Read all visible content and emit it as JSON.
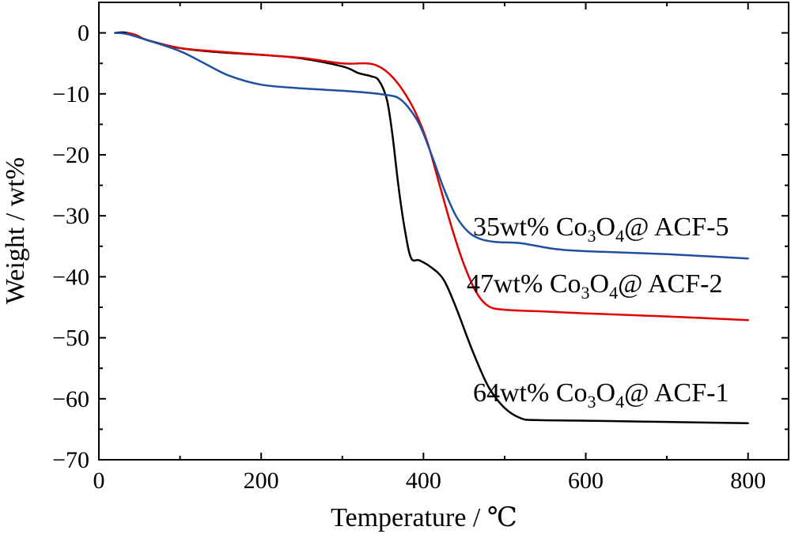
{
  "chart_data": {
    "type": "line",
    "xlabel": "Temperature / ℃",
    "ylabel": "Weight / wt%",
    "xlim": [
      0,
      850
    ],
    "ylim": [
      -70,
      5
    ],
    "xticks": [
      0,
      200,
      400,
      600,
      800
    ],
    "yticks": [
      0,
      -10,
      -20,
      -30,
      -40,
      -50,
      -60,
      -70
    ],
    "yticks_display": [
      "0",
      "−10",
      "−20",
      "−30",
      "−40",
      "−50",
      "−60",
      "−70"
    ],
    "grid": false,
    "series": [
      {
        "color": "#000000",
        "points": [
          [
            20,
            0
          ],
          [
            35,
            0
          ],
          [
            60,
            -1.2
          ],
          [
            100,
            -2.5
          ],
          [
            150,
            -3.2
          ],
          [
            200,
            -3.6
          ],
          [
            250,
            -4.2
          ],
          [
            300,
            -5.5
          ],
          [
            320,
            -6.6
          ],
          [
            335,
            -7.1
          ],
          [
            345,
            -7.8
          ],
          [
            355,
            -11
          ],
          [
            362,
            -17
          ],
          [
            370,
            -26
          ],
          [
            378,
            -33
          ],
          [
            385,
            -37
          ],
          [
            395,
            -37.3
          ],
          [
            410,
            -38.5
          ],
          [
            425,
            -40.5
          ],
          [
            440,
            -45
          ],
          [
            460,
            -52
          ],
          [
            480,
            -58
          ],
          [
            500,
            -61.5
          ],
          [
            520,
            -63.2
          ],
          [
            540,
            -63.5
          ],
          [
            600,
            -63.6
          ],
          [
            700,
            -63.8
          ],
          [
            800,
            -64
          ]
        ]
      },
      {
        "color": "#e00000",
        "points": [
          [
            35,
            0
          ],
          [
            45,
            -0.3
          ],
          [
            60,
            -1.2
          ],
          [
            100,
            -2.5
          ],
          [
            150,
            -3.1
          ],
          [
            200,
            -3.6
          ],
          [
            250,
            -4.1
          ],
          [
            300,
            -5.0
          ],
          [
            330,
            -5.0
          ],
          [
            345,
            -5.5
          ],
          [
            360,
            -7
          ],
          [
            375,
            -9.5
          ],
          [
            390,
            -13
          ],
          [
            405,
            -18
          ],
          [
            420,
            -25
          ],
          [
            435,
            -32
          ],
          [
            450,
            -38
          ],
          [
            465,
            -42.5
          ],
          [
            480,
            -44.8
          ],
          [
            500,
            -45.4
          ],
          [
            550,
            -45.7
          ],
          [
            600,
            -46
          ],
          [
            700,
            -46.5
          ],
          [
            800,
            -47.1
          ]
        ]
      },
      {
        "color": "#1f4fa0",
        "points": [
          [
            20,
            0
          ],
          [
            35,
            -0.2
          ],
          [
            60,
            -1.2
          ],
          [
            100,
            -3
          ],
          [
            130,
            -5
          ],
          [
            160,
            -7
          ],
          [
            200,
            -8.5
          ],
          [
            250,
            -9.1
          ],
          [
            300,
            -9.5
          ],
          [
            330,
            -9.8
          ],
          [
            355,
            -10.2
          ],
          [
            368,
            -10.6
          ],
          [
            380,
            -12
          ],
          [
            395,
            -15
          ],
          [
            410,
            -20
          ],
          [
            425,
            -25.5
          ],
          [
            440,
            -30
          ],
          [
            455,
            -32.6
          ],
          [
            470,
            -33.8
          ],
          [
            490,
            -34.3
          ],
          [
            520,
            -34.5
          ],
          [
            560,
            -35.4
          ],
          [
            600,
            -35.8
          ],
          [
            700,
            -36.3
          ],
          [
            800,
            -37
          ]
        ]
      }
    ]
  },
  "annotations": [
    {
      "prefix": "35wt%  Co",
      "sub1": "3",
      "mid": "O",
      "sub2": "4",
      "suffix": "@ ACF-5"
    },
    {
      "prefix": "47wt%  Co",
      "sub1": "3",
      "mid": "O",
      "sub2": "4",
      "suffix": "@ ACF-2"
    },
    {
      "prefix": "64wt%  Co",
      "sub1": "3",
      "mid": "O",
      "sub2": "4",
      "suffix": "@ ACF-1"
    }
  ]
}
